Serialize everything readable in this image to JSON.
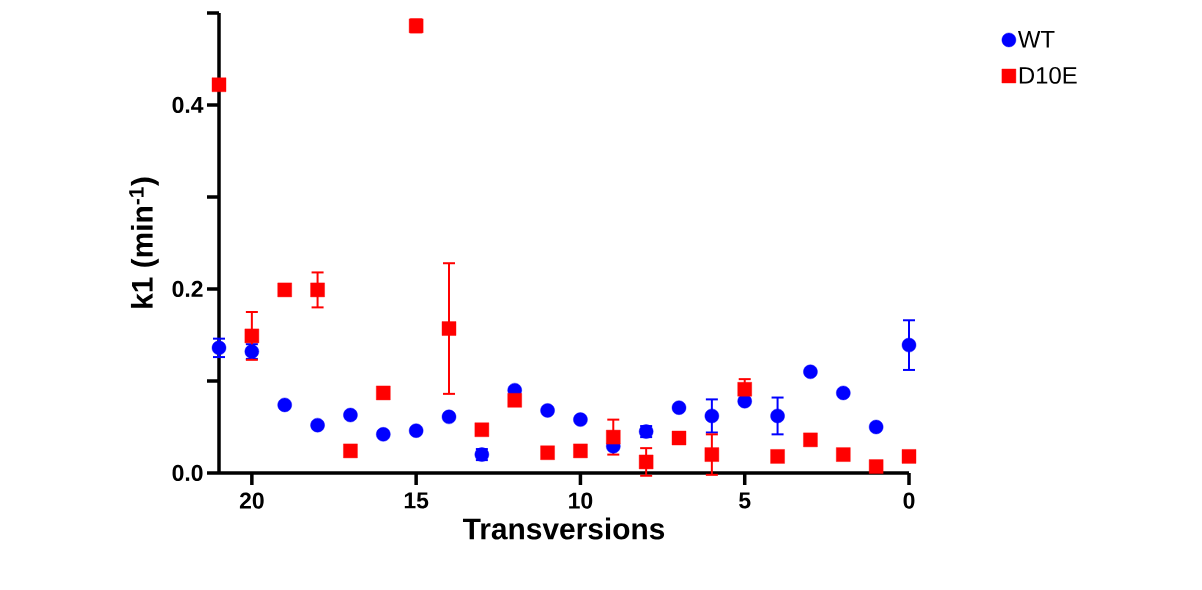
{
  "chart_data": {
    "type": "scatter",
    "xlabel": "Transversions",
    "ylabel": "k1 (min$^{-1}$)",
    "x": [
      21,
      20,
      19,
      18,
      17,
      16,
      15,
      14,
      13,
      12,
      11,
      10,
      9,
      8,
      7,
      6,
      5,
      4,
      3,
      2,
      1,
      0
    ],
    "xlim": [
      21,
      0
    ],
    "xticks": [
      20,
      15,
      10,
      5,
      0
    ],
    "ylim": [
      0,
      0.5
    ],
    "yticks": [
      {
        "value": 0,
        "label": "0.0"
      },
      {
        "value": 0.1,
        "label": null
      },
      {
        "value": 0.2,
        "label": "0.2"
      },
      {
        "value": 0.3,
        "label": null
      },
      {
        "value": 0.4,
        "label": "0.4"
      },
      {
        "value": 0.5,
        "label": null
      }
    ],
    "grid": false,
    "legend": "top right",
    "series": [
      {
        "name": "WT",
        "color": "#0000ff",
        "marker": "circle",
        "values": [
          0.136,
          0.132,
          0.074,
          0.052,
          0.063,
          0.042,
          0.046,
          0.061,
          0.02,
          0.09,
          0.068,
          0.058,
          0.029,
          0.045,
          0.071,
          0.062,
          0.078,
          0.062,
          0.11,
          0.087,
          0.05,
          0.139
        ],
        "errors": [
          0.01,
          0.008,
          null,
          null,
          null,
          null,
          null,
          null,
          0.006,
          null,
          null,
          null,
          null,
          0.006,
          null,
          0.018,
          null,
          0.02,
          null,
          null,
          null,
          0.027
        ]
      },
      {
        "name": "D10E",
        "color": "#ff0000",
        "marker": "square",
        "values": [
          0.422,
          0.149,
          0.199,
          0.199,
          0.024,
          0.087,
          0.486,
          0.157,
          0.047,
          0.079,
          0.022,
          0.024,
          0.039,
          0.012,
          0.038,
          0.02,
          0.091,
          0.018,
          0.036,
          0.02,
          0.007,
          0.018
        ],
        "errors": [
          null,
          0.026,
          null,
          0.019,
          null,
          null,
          0.007,
          0.071,
          null,
          null,
          null,
          null,
          0.019,
          0.015,
          null,
          0.022,
          0.011,
          null,
          null,
          null,
          null,
          null
        ]
      }
    ]
  }
}
